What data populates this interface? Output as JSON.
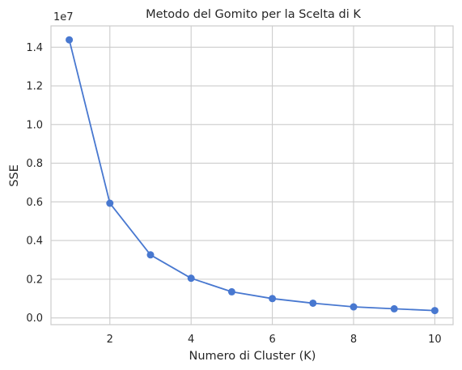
{
  "chart_data": {
    "type": "line",
    "title": "Metodo del Gomito per la Scelta di K",
    "xlabel": "Numero di Cluster (K)",
    "ylabel": "SSE",
    "y_offset_label": "1e7",
    "x": [
      1,
      2,
      3,
      4,
      5,
      6,
      7,
      8,
      9,
      10
    ],
    "series": [
      {
        "values": [
          14380000,
          5930000,
          3260000,
          2050000,
          1350000,
          1000000,
          760000,
          570000,
          470000,
          380000
        ],
        "color": "#4878d0",
        "marker": "circle"
      }
    ],
    "xlim": [
      0.55,
      10.45
    ],
    "ylim": [
      -350000,
      15100000
    ],
    "x_ticks": [
      2,
      4,
      6,
      8,
      10
    ],
    "x_tick_labels": [
      "2",
      "4",
      "6",
      "8",
      "10"
    ],
    "y_ticks": [
      0,
      2000000,
      4000000,
      6000000,
      8000000,
      10000000,
      12000000,
      14000000
    ],
    "y_tick_labels": [
      "0.0",
      "0.2",
      "0.4",
      "0.6",
      "0.8",
      "1.0",
      "1.2",
      "1.4"
    ],
    "grid": true,
    "legend": false
  }
}
